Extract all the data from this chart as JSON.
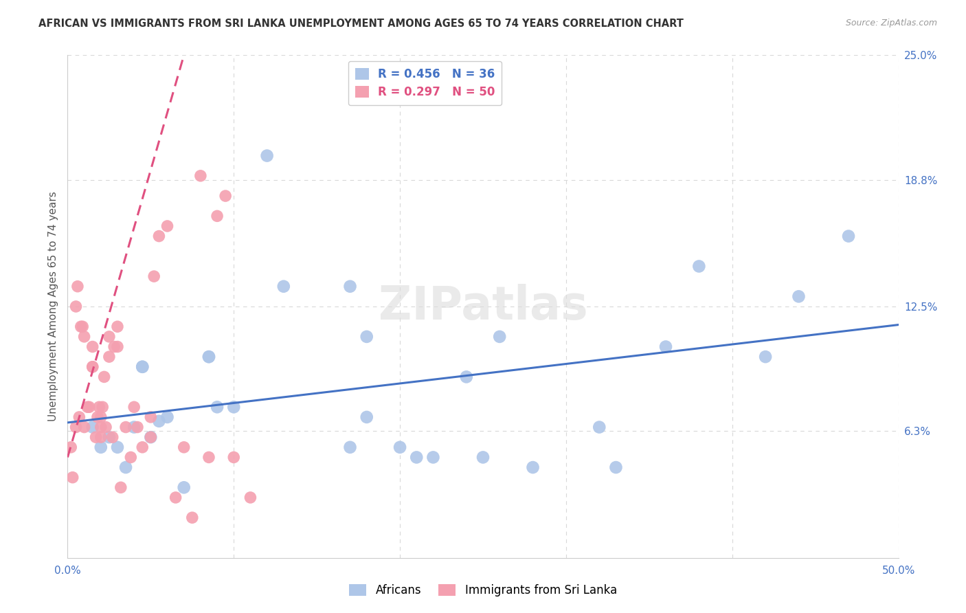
{
  "title": "AFRICAN VS IMMIGRANTS FROM SRI LANKA UNEMPLOYMENT AMONG AGES 65 TO 74 YEARS CORRELATION CHART",
  "source": "Source: ZipAtlas.com",
  "ylabel": "Unemployment Among Ages 65 to 74 years",
  "xlim": [
    0,
    50
  ],
  "ylim": [
    0,
    25
  ],
  "africans_R": 0.456,
  "africans_N": 36,
  "srilanka_R": 0.297,
  "srilanka_N": 50,
  "africans_color": "#aec6e8",
  "srilanka_color": "#f4a0b0",
  "trend_africans_color": "#4472c4",
  "trend_srilanka_color": "#e05080",
  "africans_x": [
    1.5,
    2.0,
    2.5,
    3.0,
    3.5,
    4.0,
    4.5,
    4.5,
    5.0,
    5.5,
    6.0,
    7.0,
    8.5,
    8.5,
    9.0,
    10.0,
    12.0,
    13.0,
    17.0,
    17.0,
    18.0,
    18.0,
    20.0,
    21.0,
    22.0,
    24.0,
    25.0,
    26.0,
    28.0,
    32.0,
    33.0,
    36.0,
    38.0,
    42.0,
    44.0,
    47.0
  ],
  "africans_y": [
    6.5,
    5.5,
    6.0,
    5.5,
    4.5,
    6.5,
    9.5,
    9.5,
    6.0,
    6.8,
    7.0,
    3.5,
    10.0,
    10.0,
    7.5,
    7.5,
    20.0,
    13.5,
    13.5,
    5.5,
    7.0,
    11.0,
    5.5,
    5.0,
    5.0,
    9.0,
    5.0,
    11.0,
    4.5,
    6.5,
    4.5,
    10.5,
    14.5,
    10.0,
    13.0,
    16.0
  ],
  "srilanka_x": [
    0.2,
    0.3,
    0.5,
    0.5,
    0.6,
    0.7,
    0.8,
    0.9,
    1.0,
    1.0,
    1.2,
    1.3,
    1.5,
    1.5,
    1.5,
    1.7,
    1.8,
    1.9,
    2.0,
    2.0,
    2.0,
    2.1,
    2.2,
    2.3,
    2.5,
    2.5,
    2.7,
    2.8,
    3.0,
    3.0,
    3.2,
    3.5,
    3.8,
    4.0,
    4.2,
    4.5,
    5.0,
    5.0,
    5.2,
    5.5,
    6.0,
    6.5,
    7.0,
    7.5,
    8.0,
    8.5,
    9.0,
    9.5,
    10.0,
    11.0
  ],
  "srilanka_y": [
    5.5,
    4.0,
    12.5,
    6.5,
    13.5,
    7.0,
    11.5,
    11.5,
    6.5,
    11.0,
    7.5,
    7.5,
    9.5,
    9.5,
    10.5,
    6.0,
    7.0,
    7.5,
    6.0,
    6.5,
    7.0,
    7.5,
    9.0,
    6.5,
    11.0,
    10.0,
    6.0,
    10.5,
    10.5,
    11.5,
    3.5,
    6.5,
    5.0,
    7.5,
    6.5,
    5.5,
    6.0,
    7.0,
    14.0,
    16.0,
    16.5,
    3.0,
    5.5,
    2.0,
    19.0,
    5.0,
    17.0,
    18.0,
    5.0,
    3.0
  ],
  "watermark": "ZIPatlas",
  "background_color": "#ffffff",
  "grid_color": "#d8d8d8"
}
